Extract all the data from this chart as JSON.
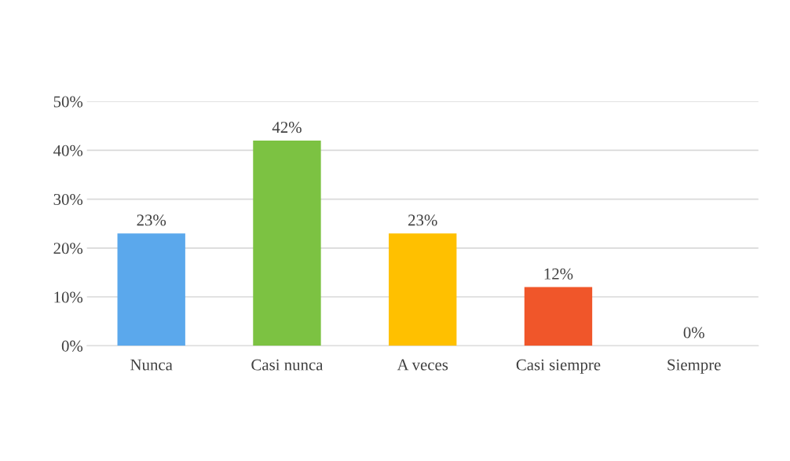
{
  "chart_data": {
    "type": "bar",
    "categories": [
      "Nunca",
      "Casi nunca",
      "A veces",
      "Casi siempre",
      "Siempre"
    ],
    "values": [
      23,
      42,
      23,
      12,
      0
    ],
    "colors": [
      "#5ba8ec",
      "#7cc242",
      "#ffc000",
      "#f0562a",
      "#1f4e8c"
    ],
    "value_labels": [
      "23%",
      "42%",
      "23%",
      "12%",
      "0%"
    ],
    "ylim": [
      0,
      50
    ],
    "yticks": [
      {
        "value": 0,
        "label": "0%"
      },
      {
        "value": 10,
        "label": "10%"
      },
      {
        "value": 20,
        "label": "20%"
      },
      {
        "value": 30,
        "label": "30%"
      },
      {
        "value": 40,
        "label": "40%"
      },
      {
        "value": 50,
        "label": "50%"
      }
    ],
    "grid": "y"
  }
}
